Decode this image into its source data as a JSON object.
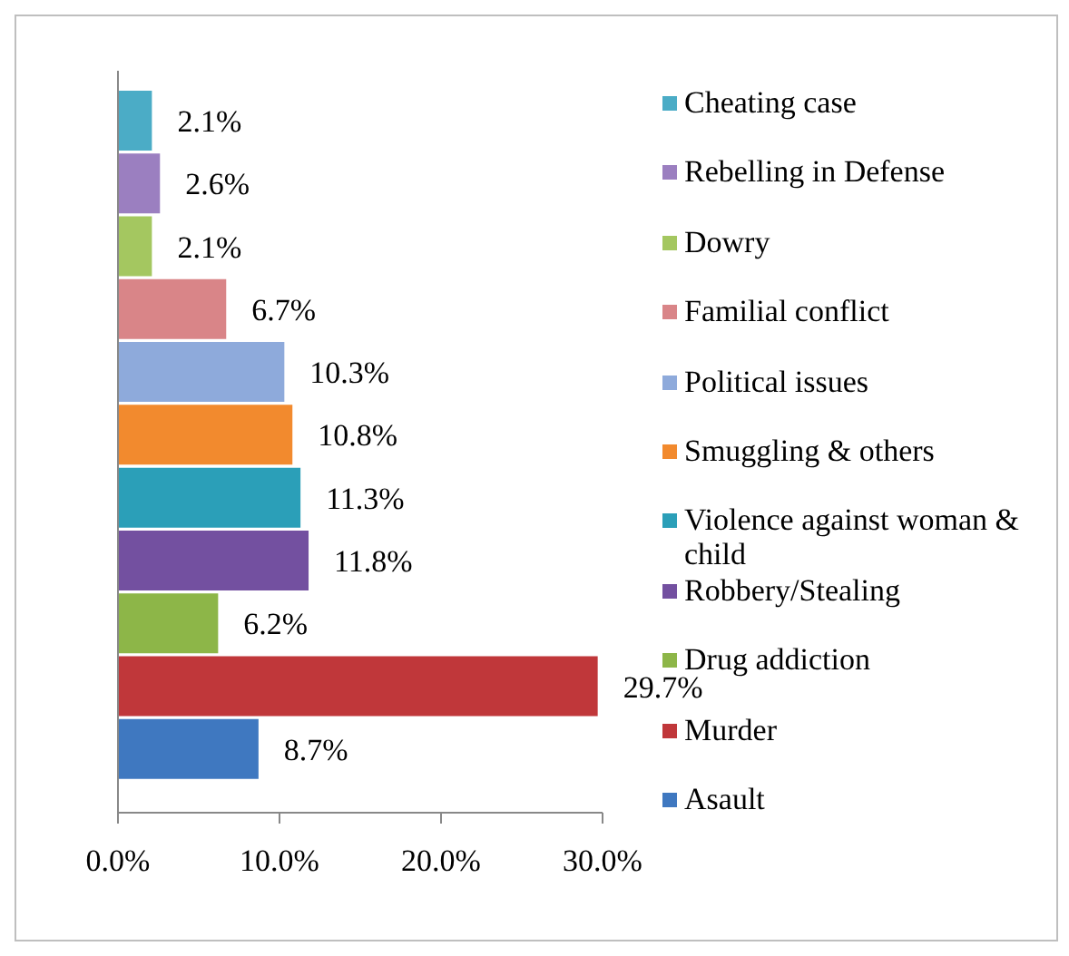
{
  "chart_data": {
    "type": "bar",
    "orientation": "horizontal",
    "categories": [
      null,
      null,
      null,
      null,
      null,
      null,
      null,
      null,
      null,
      null,
      null
    ],
    "series": [
      {
        "name": "Cheating case",
        "color": "#4bacc6",
        "values": [
          2.1,
          null,
          null,
          null,
          null,
          null,
          null,
          null,
          null,
          null,
          null
        ],
        "value_labels": [
          "2.1%",
          null,
          null,
          null,
          null,
          null,
          null,
          null,
          null,
          null,
          null
        ]
      },
      {
        "name": "Rebelling in Defense",
        "color": "#9b7fc0",
        "values": [
          null,
          2.6,
          null,
          null,
          null,
          null,
          null,
          null,
          null,
          null,
          null
        ],
        "value_labels": [
          null,
          "2.6%",
          null,
          null,
          null,
          null,
          null,
          null,
          null,
          null,
          null
        ]
      },
      {
        "name": "Dowry",
        "color": "#a4c760",
        "values": [
          null,
          null,
          2.1,
          null,
          null,
          null,
          null,
          null,
          null,
          null,
          null
        ],
        "value_labels": [
          null,
          null,
          "2.1%",
          null,
          null,
          null,
          null,
          null,
          null,
          null,
          null
        ]
      },
      {
        "name": "Familial conflict",
        "color": "#d98588",
        "values": [
          null,
          null,
          null,
          6.7,
          null,
          null,
          null,
          null,
          null,
          null,
          null
        ],
        "value_labels": [
          null,
          null,
          null,
          "6.7%",
          null,
          null,
          null,
          null,
          null,
          null,
          null
        ]
      },
      {
        "name": "Political issues",
        "color": "#8eaadb",
        "values": [
          null,
          null,
          null,
          null,
          10.3,
          null,
          null,
          null,
          null,
          null,
          null
        ],
        "value_labels": [
          null,
          null,
          null,
          null,
          "10.3%",
          null,
          null,
          null,
          null,
          null,
          null
        ]
      },
      {
        "name": "Smuggling & others",
        "color": "#f28a2e",
        "values": [
          null,
          null,
          null,
          null,
          null,
          10.8,
          null,
          null,
          null,
          null,
          null
        ],
        "value_labels": [
          null,
          null,
          null,
          null,
          null,
          "10.8%",
          null,
          null,
          null,
          null,
          null
        ]
      },
      {
        "name": "Violence against woman & child",
        "color": "#2b9fb8",
        "values": [
          null,
          null,
          null,
          null,
          null,
          null,
          11.3,
          null,
          null,
          null,
          null
        ],
        "value_labels": [
          null,
          null,
          null,
          null,
          null,
          null,
          "11.3%",
          null,
          null,
          null,
          null
        ]
      },
      {
        "name": "Robbery/Stealing",
        "color": "#7350a0",
        "values": [
          null,
          null,
          null,
          null,
          null,
          null,
          null,
          11.8,
          null,
          null,
          null
        ],
        "value_labels": [
          null,
          null,
          null,
          null,
          null,
          null,
          null,
          "11.8%",
          null,
          null,
          null
        ]
      },
      {
        "name": "Drug addiction",
        "color": "#8db648",
        "values": [
          null,
          null,
          null,
          null,
          null,
          null,
          null,
          null,
          6.2,
          null,
          null
        ],
        "value_labels": [
          null,
          null,
          null,
          null,
          null,
          null,
          null,
          null,
          "6.2%",
          null,
          null
        ]
      },
      {
        "name": "Murder",
        "color": "#c0373a",
        "values": [
          null,
          null,
          null,
          null,
          null,
          null,
          null,
          null,
          null,
          29.7,
          null
        ],
        "value_labels": [
          null,
          null,
          null,
          null,
          null,
          null,
          null,
          null,
          null,
          "29.7%",
          null
        ]
      },
      {
        "name": "Asault",
        "color": "#3f78c0",
        "values": [
          null,
          null,
          null,
          null,
          null,
          null,
          null,
          null,
          null,
          null,
          8.7
        ],
        "value_labels": [
          null,
          null,
          null,
          null,
          null,
          null,
          null,
          null,
          null,
          null,
          "8.7%"
        ]
      }
    ],
    "xlim": [
      0,
      30
    ],
    "xticks": [
      {
        "value": 0,
        "label": "0.0%"
      },
      {
        "value": 10,
        "label": "10.0%"
      },
      {
        "value": 20,
        "label": "20.0%"
      },
      {
        "value": 30,
        "label": "30.0%"
      }
    ],
    "tick_labels": "x",
    "grid": false,
    "legend": "right"
  }
}
